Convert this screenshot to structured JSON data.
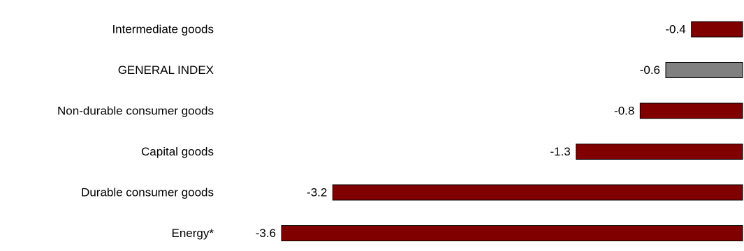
{
  "chart_data": {
    "type": "bar",
    "orientation": "horizontal",
    "title": "",
    "xlabel": "",
    "ylabel": "",
    "categories": [
      "Intermediate goods",
      "GENERAL INDEX",
      "Non-durable consumer goods",
      "Capital goods",
      "Durable consumer goods",
      "Energy*"
    ],
    "values": [
      -0.4,
      -0.6,
      -0.8,
      -1.3,
      -3.2,
      -3.6
    ],
    "value_labels": [
      "-0.4",
      "-0.6",
      "-0.8",
      "-1.3",
      "-3.2",
      "-3.6"
    ],
    "colors": [
      "#800000",
      "#808080",
      "#800000",
      "#800000",
      "#800000",
      "#800000"
    ],
    "xlim": [
      -3.6,
      0
    ],
    "grid": false,
    "legend": "none"
  }
}
